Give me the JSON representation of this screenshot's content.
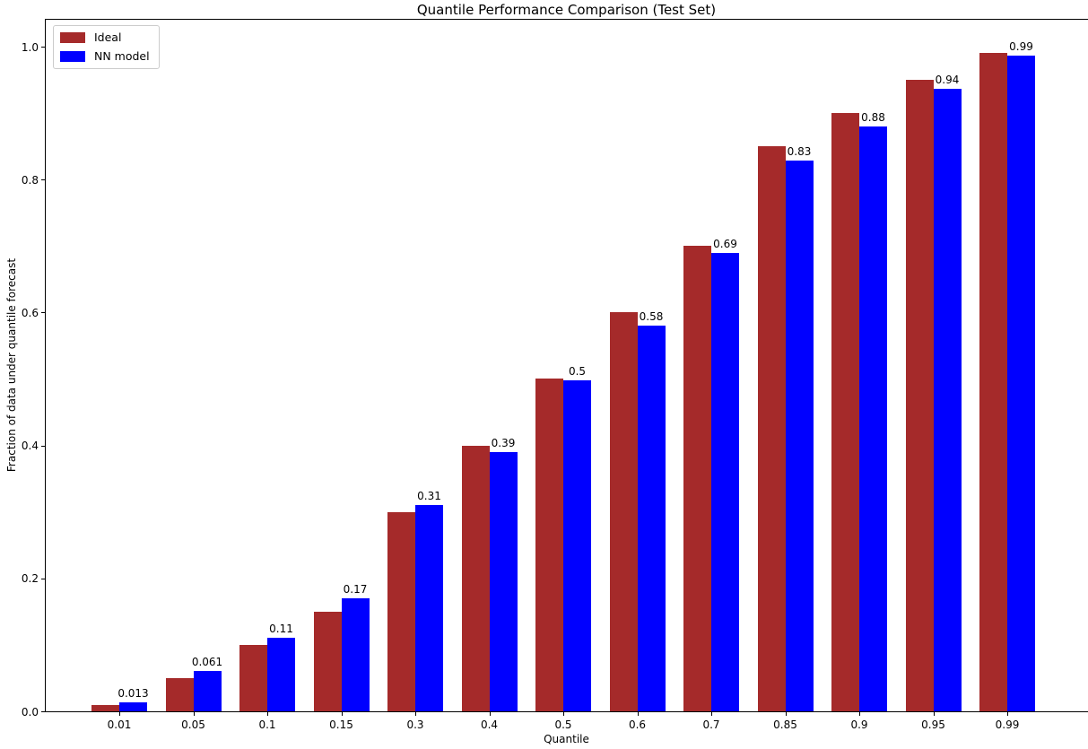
{
  "chart_data": {
    "type": "bar",
    "title": "Quantile Performance Comparison (Test Set)",
    "xlabel": "Quantile",
    "ylabel": "Fraction of data under quantile forecast",
    "categories": [
      "0.01",
      "0.05",
      "0.1",
      "0.15",
      "0.3",
      "0.4",
      "0.5",
      "0.6",
      "0.7",
      "0.85",
      "0.9",
      "0.95",
      "0.99"
    ],
    "series": [
      {
        "name": "Ideal",
        "color": "#a52a2a",
        "values": [
          0.01,
          0.05,
          0.1,
          0.15,
          0.3,
          0.4,
          0.5,
          0.6,
          0.7,
          0.85,
          0.9,
          0.95,
          0.99
        ]
      },
      {
        "name": "NN model",
        "color": "#0000ff",
        "values": [
          0.013,
          0.061,
          0.11,
          0.17,
          0.31,
          0.39,
          0.498,
          0.58,
          0.69,
          0.829,
          0.88,
          0.937,
          0.987
        ]
      }
    ],
    "bar_labels": [
      "0.013",
      "0.061",
      "0.11",
      "0.17",
      "0.31",
      "0.39",
      "0.5",
      "0.58",
      "0.69",
      "0.83",
      "0.88",
      "0.94",
      "0.99"
    ],
    "yticks": [
      "0.0",
      "0.2",
      "0.4",
      "0.6",
      "0.8",
      "1.0"
    ],
    "ylim": [
      0,
      1.042
    ],
    "grid": false,
    "legend_position": "upper left"
  }
}
